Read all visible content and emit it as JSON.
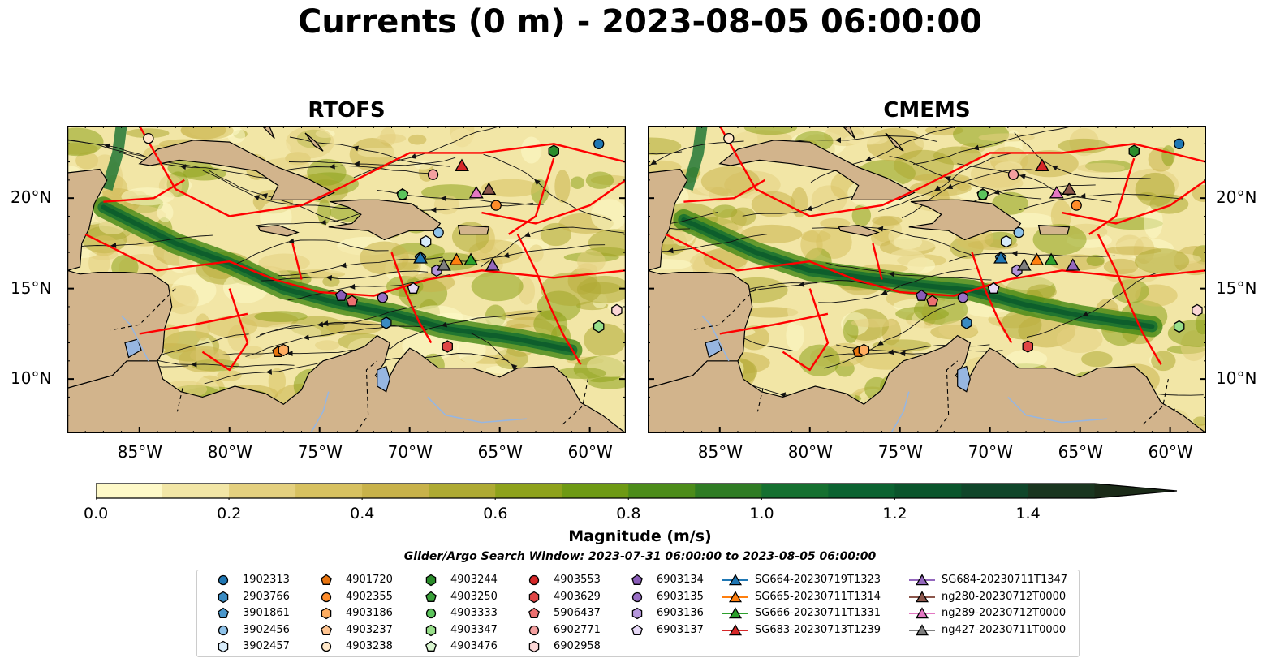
{
  "title": "Currents (0 m) - 2023-08-05 06:00:00",
  "panels": [
    {
      "title": "RTOFS"
    },
    {
      "title": "CMEMS"
    }
  ],
  "axes": {
    "x_ticks": [
      "85°W",
      "80°W",
      "75°W",
      "70°W",
      "65°W",
      "60°W"
    ],
    "y_ticks": [
      "20°N",
      "15°N",
      "10°N"
    ]
  },
  "colorbar": {
    "label": "Magnitude (m/s)",
    "ticks": [
      "0.0",
      "0.2",
      "0.4",
      "0.6",
      "0.8",
      "1.0",
      "1.2",
      "1.4"
    ],
    "subtitle": "Glider/Argo Search Window: 2023-07-31 06:00:00 to 2023-08-05 06:00:00",
    "colors": [
      "#fef9c8",
      "#f2e6a6",
      "#e4d07f",
      "#d7c160",
      "#c8b24a",
      "#aeaa33",
      "#8ea21c",
      "#6e9a14",
      "#4c8c1a",
      "#2f7c24",
      "#157030",
      "#0b6331",
      "#0a552c",
      "#10462a",
      "#1a3620",
      "#1b2b18"
    ]
  },
  "legend": {
    "items": [
      {
        "label": "1902313",
        "shape": "circle",
        "color": "#1f77b4"
      },
      {
        "label": "2903766",
        "shape": "hexagon",
        "color": "#3a8bc2"
      },
      {
        "label": "3901861",
        "shape": "pentagon",
        "color": "#4a97cc"
      },
      {
        "label": "3902456",
        "shape": "circle",
        "color": "#8fc3ea"
      },
      {
        "label": "3902457",
        "shape": "hexagon",
        "color": "#d8ecfa"
      },
      {
        "label": "4901720",
        "shape": "pentagon",
        "color": "#e8740f"
      },
      {
        "label": "4902355",
        "shape": "circle",
        "color": "#ff8c2a"
      },
      {
        "label": "4903186",
        "shape": "hexagon",
        "color": "#ffad60"
      },
      {
        "label": "4903237",
        "shape": "pentagon",
        "color": "#ffc490"
      },
      {
        "label": "4903238",
        "shape": "circle",
        "color": "#ffe7c8"
      },
      {
        "label": "4903244",
        "shape": "hexagon",
        "color": "#2a8c2a"
      },
      {
        "label": "4903250",
        "shape": "pentagon",
        "color": "#3aa03a"
      },
      {
        "label": "4903333",
        "shape": "circle",
        "color": "#5cc45c"
      },
      {
        "label": "4903347",
        "shape": "hexagon",
        "color": "#98df8a"
      },
      {
        "label": "4903476",
        "shape": "pentagon",
        "color": "#d8f5cf"
      },
      {
        "label": "4903553",
        "shape": "circle",
        "color": "#d62728"
      },
      {
        "label": "4903629",
        "shape": "hexagon",
        "color": "#e04545"
      },
      {
        "label": "5906437",
        "shape": "pentagon",
        "color": "#ec7070"
      },
      {
        "label": "6902771",
        "shape": "circle",
        "color": "#f4a0a0"
      },
      {
        "label": "6902958",
        "shape": "hexagon",
        "color": "#fbd6d6"
      },
      {
        "label": "6903134",
        "shape": "pentagon",
        "color": "#8a5cb8"
      },
      {
        "label": "6903135",
        "shape": "circle",
        "color": "#9a6fc6"
      },
      {
        "label": "6903136",
        "shape": "hexagon",
        "color": "#b596dc"
      },
      {
        "label": "6903137",
        "shape": "pentagon",
        "color": "#e6d8f6"
      },
      {
        "label": "SG664-20230719T1323",
        "shape": "triangle-line",
        "color": "#1f77b4"
      },
      {
        "label": "SG665-20230711T1314",
        "shape": "triangle-line",
        "color": "#ff7f0e"
      },
      {
        "label": "SG666-20230711T1331",
        "shape": "triangle-line",
        "color": "#2ca02c"
      },
      {
        "label": "SG683-20230713T1239",
        "shape": "triangle-line",
        "color": "#d62728"
      },
      {
        "label": "SG684-20230711T1347",
        "shape": "triangle-line",
        "color": "#9467bd"
      },
      {
        "label": "ng280-20230712T0000",
        "shape": "triangle-line",
        "color": "#8c564b"
      },
      {
        "label": "ng289-20230712T0000",
        "shape": "triangle-line",
        "color": "#e377c2"
      },
      {
        "label": "ng427-20230711T0000",
        "shape": "triangle-line",
        "color": "#7f7f7f"
      }
    ]
  },
  "chart_data": {
    "type": "heatmap",
    "title": "Currents (0 m) - 2023-08-05 06:00:00",
    "colorbar_label": "Magnitude (m/s)",
    "colorbar_range": [
      0.0,
      1.5
    ],
    "colorbar_extend": "max",
    "panels": [
      "RTOFS",
      "CMEMS"
    ],
    "xlim": [
      -89,
      -58
    ],
    "ylim": [
      7,
      24
    ],
    "x_ticks": [
      -85,
      -80,
      -75,
      -70,
      -65,
      -60
    ],
    "y_ticks": [
      20,
      15,
      10
    ],
    "argo_floats": [
      {
        "id": "1902313",
        "lon": -59.5,
        "lat": 23.0
      },
      {
        "id": "2903766",
        "lon": -71.3,
        "lat": 13.1
      },
      {
        "id": "3901861",
        "lon": -69.4,
        "lat": 16.7
      },
      {
        "id": "3902456",
        "lon": -68.4,
        "lat": 18.1
      },
      {
        "id": "3902457",
        "lon": -69.1,
        "lat": 17.6
      },
      {
        "id": "4901720",
        "lon": -77.3,
        "lat": 11.5
      },
      {
        "id": "4902355",
        "lon": -65.2,
        "lat": 19.6
      },
      {
        "id": "4903186",
        "lon": -77.0,
        "lat": 11.6
      },
      {
        "id": "4903237",
        "lon": -73.2,
        "lat": 14.3
      },
      {
        "id": "4903238",
        "lon": -84.5,
        "lat": 23.3
      },
      {
        "id": "4903244",
        "lon": -62.0,
        "lat": 22.6
      },
      {
        "id": "4903250",
        "lon": -70.4,
        "lat": 20.2
      },
      {
        "id": "4903333",
        "lon": -70.4,
        "lat": 20.2
      },
      {
        "id": "4903347",
        "lon": -59.5,
        "lat": 12.9
      },
      {
        "id": "4903476",
        "lon": -69.8,
        "lat": 15.0
      },
      {
        "id": "4903553",
        "lon": -67.9,
        "lat": 11.8
      },
      {
        "id": "4903629",
        "lon": -67.9,
        "lat": 11.8
      },
      {
        "id": "5906437",
        "lon": -73.2,
        "lat": 14.3
      },
      {
        "id": "6902771",
        "lon": -68.7,
        "lat": 21.3
      },
      {
        "id": "6902958",
        "lon": -58.5,
        "lat": 13.8
      },
      {
        "id": "6903134",
        "lon": -73.8,
        "lat": 14.6
      },
      {
        "id": "6903135",
        "lon": -71.5,
        "lat": 14.5
      },
      {
        "id": "6903136",
        "lon": -68.5,
        "lat": 16.0
      },
      {
        "id": "6903137",
        "lon": -69.8,
        "lat": 15.0
      }
    ],
    "gliders": [
      {
        "id": "SG664-20230719T1323",
        "lon": -69.4,
        "lat": 16.7
      },
      {
        "id": "SG665-20230711T1314",
        "lon": -67.4,
        "lat": 16.6
      },
      {
        "id": "SG666-20230711T1331",
        "lon": -66.6,
        "lat": 16.6
      },
      {
        "id": "SG683-20230713T1239",
        "lon": -67.1,
        "lat": 21.8
      },
      {
        "id": "SG684-20230711T1347",
        "lon": -65.4,
        "lat": 16.3
      },
      {
        "id": "ng280-20230712T0000",
        "lon": -65.6,
        "lat": 20.5
      },
      {
        "id": "ng289-20230712T0000",
        "lon": -66.3,
        "lat": 20.3
      },
      {
        "id": "ng427-20230711T0000",
        "lon": -68.1,
        "lat": 16.3
      }
    ]
  }
}
